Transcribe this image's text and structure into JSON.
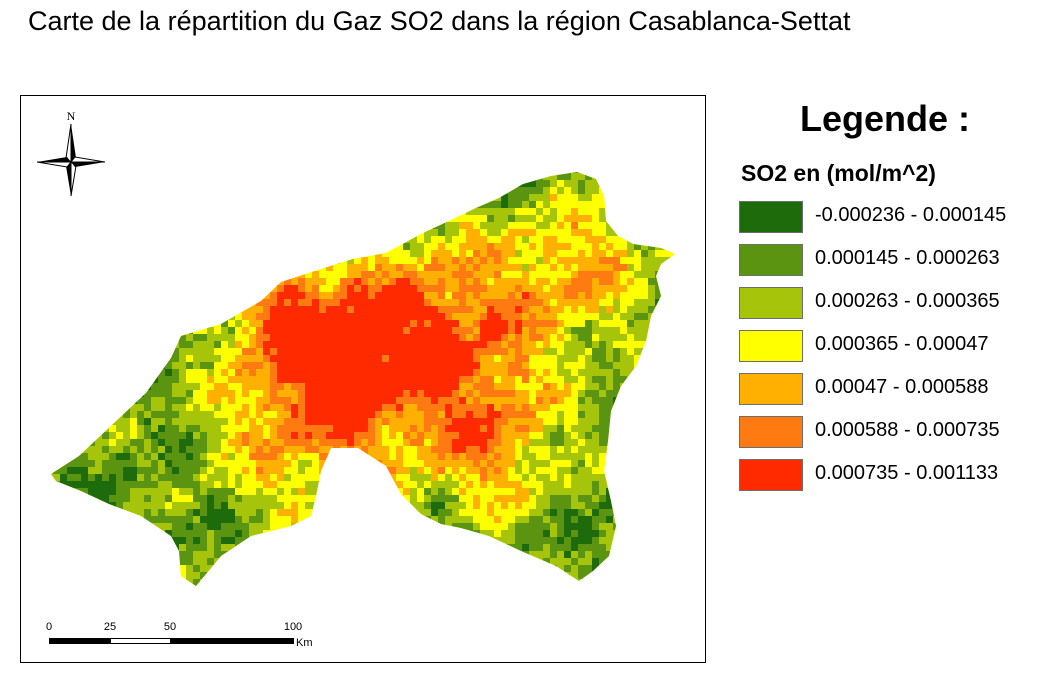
{
  "title": "Carte de la répartition du Gaz SO2 dans la région Casablanca-Settat",
  "north_arrow": {
    "label": "N",
    "icon": "north-arrow-icon"
  },
  "scalebar": {
    "ticks": [
      "0",
      "25",
      "50",
      "100"
    ],
    "unit": "Km"
  },
  "legend": {
    "title": "Legende :",
    "subtitle": "SO2 en (mol/m^2)",
    "classes": [
      {
        "label": "-0.000236 - 0.000145",
        "color": "#1e6b0c"
      },
      {
        "label": "0.000145 - 0.000263",
        "color": "#5a9410"
      },
      {
        "label": "0.000263 - 0.000365",
        "color": "#a5c40a"
      },
      {
        "label": "0.000365 - 0.00047",
        "color": "#ffff00"
      },
      {
        "label": "0.00047 - 0.000588",
        "color": "#ffb000"
      },
      {
        "label": "0.000588 - 0.000735",
        "color": "#ff7b12"
      },
      {
        "label": "0.000735 - 0.001133",
        "color": "#ff2a00"
      }
    ]
  }
}
